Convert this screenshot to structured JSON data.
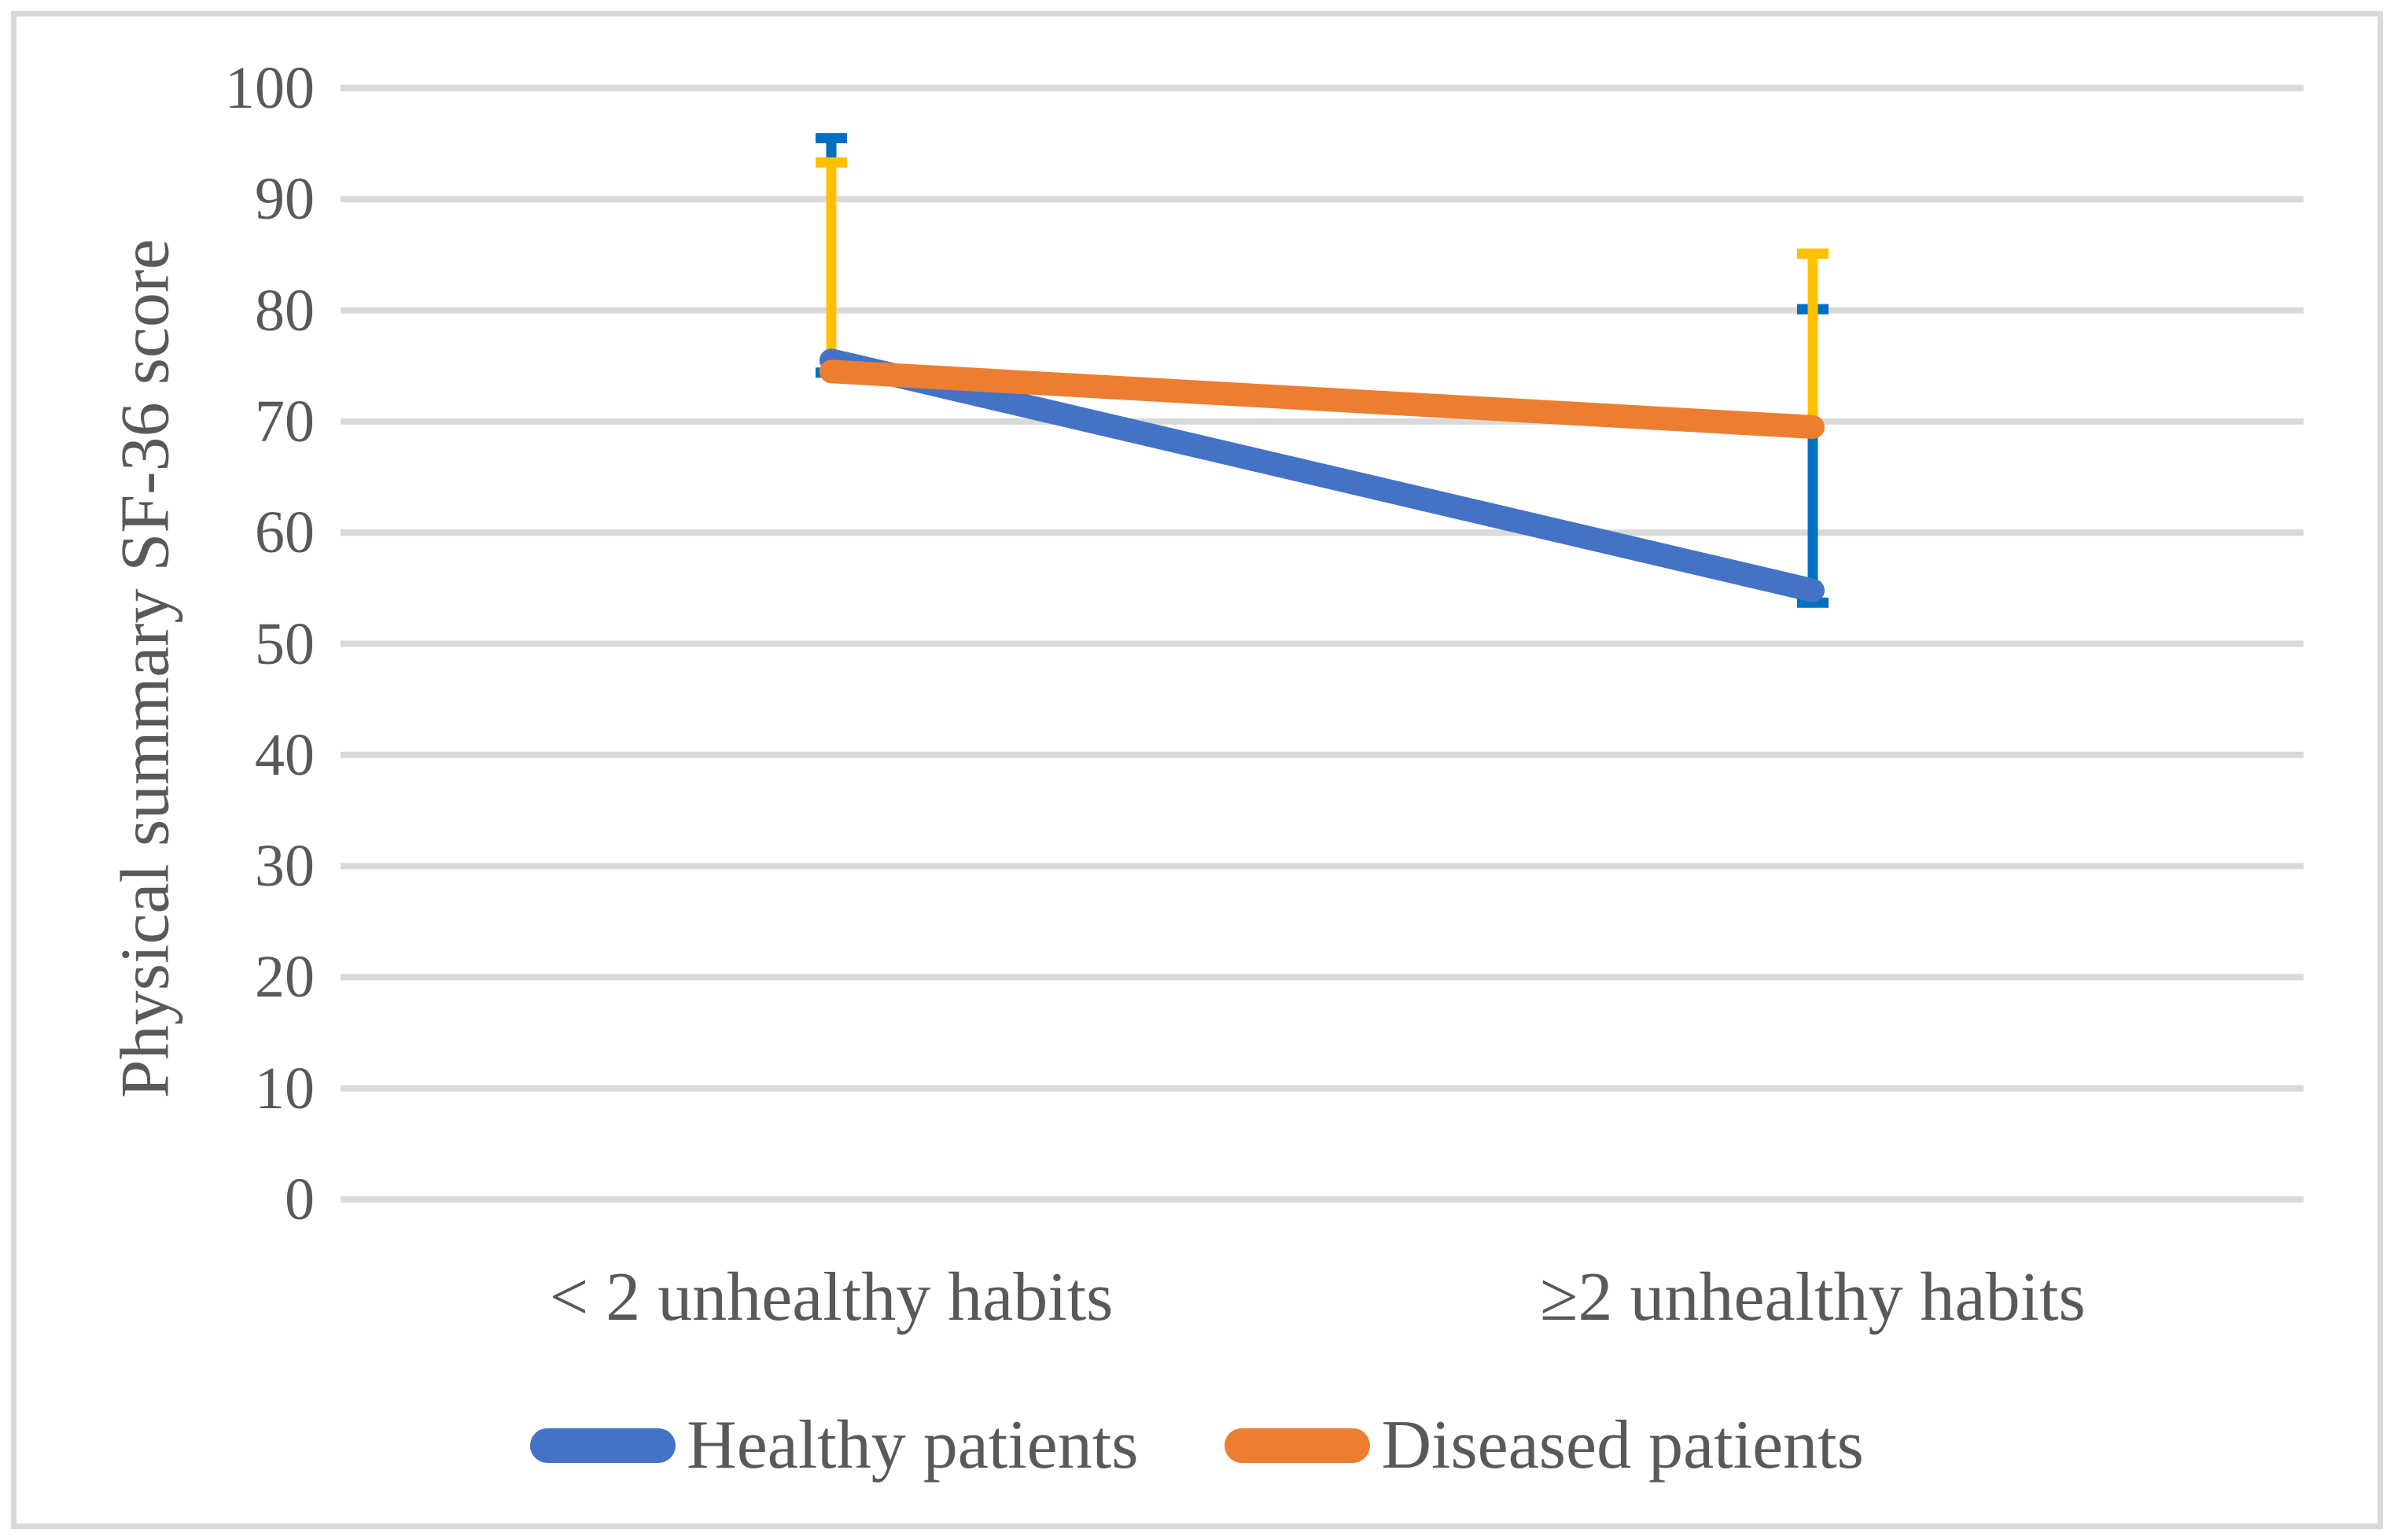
{
  "chart_data": {
    "type": "line",
    "title": "",
    "xlabel": "",
    "ylabel": "Physical summary SF-36 score",
    "ylim": [
      0,
      100
    ],
    "yticks": [
      0,
      10,
      20,
      30,
      40,
      50,
      60,
      70,
      80,
      90,
      100
    ],
    "categories": [
      "< 2 unhealthy habits",
      "≥2 unhealthy habits"
    ],
    "series": [
      {
        "name": "Healthy patients",
        "color": "#4472C4",
        "values": [
          75.5,
          54.8
        ],
        "error_bar": {
          "color": "#0070C0",
          "upper": [
            95.5,
            80.1
          ],
          "lower": [
            74.4,
            53.7
          ],
          "caps": "both"
        }
      },
      {
        "name": "Diseased patients",
        "color": "#ED7D31",
        "values": [
          74.5,
          69.5
        ],
        "error_bar": {
          "color": "#FFC000",
          "upper": [
            93.3,
            85.1
          ],
          "lower": [
            74.5,
            69.5
          ],
          "caps": "top"
        }
      }
    ],
    "grid": {
      "visible": true,
      "color": "#D9D9D9"
    },
    "legend": {
      "position": "bottom"
    },
    "text_color": "#595959",
    "border_color": "#D9D9D9",
    "background": "#FFFFFF"
  }
}
